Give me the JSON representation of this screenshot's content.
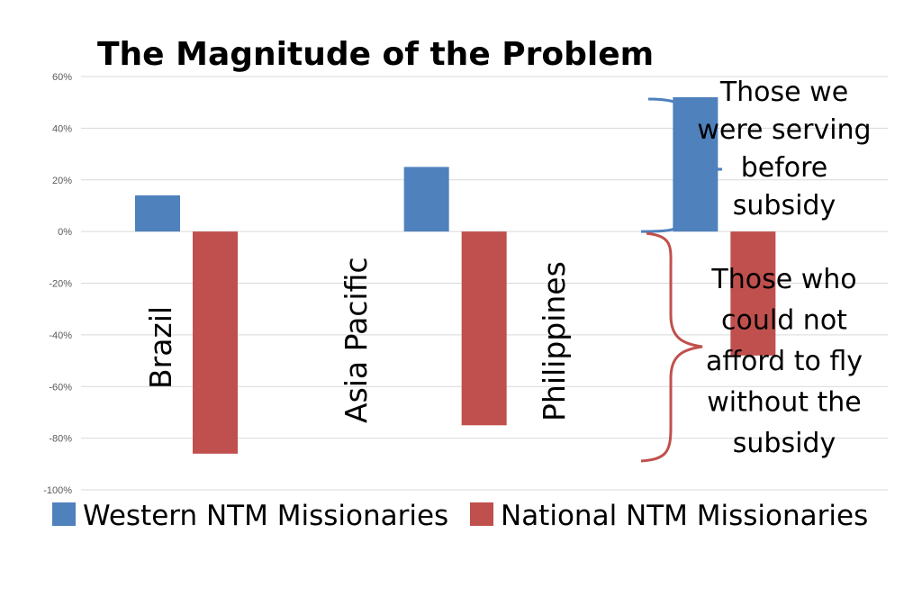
{
  "chart_data": {
    "type": "bar",
    "title": "The Magnitude of the Problem",
    "categories": [
      "Brazil",
      "Asia Pacific",
      "Philippines"
    ],
    "series": [
      {
        "name": "Western NTM Missionaries",
        "values": [
          14,
          25,
          52
        ],
        "color": "#4F81BD"
      },
      {
        "name": "National NTM Missionaries",
        "values": [
          -86,
          -75,
          -48
        ],
        "color": "#C0504D"
      }
    ],
    "ylim": [
      -100,
      60
    ],
    "yticks": [
      60,
      40,
      20,
      0,
      -20,
      -40,
      -60,
      -80,
      -100
    ],
    "ytick_labels": [
      "60%",
      "40%",
      "20%",
      "0%",
      "-20%",
      "-40%",
      "-60%",
      "-80%",
      "-100%"
    ],
    "grid": true,
    "legend": "bottom",
    "annotations": [
      {
        "lines": [
          "Those we",
          "were serving",
          "before",
          "subsidy"
        ],
        "color": "#4F81BD"
      },
      {
        "lines": [
          "Those who",
          "could not",
          "afford to fly",
          "without the",
          "subsidy"
        ],
        "color": "#C0504D"
      }
    ]
  }
}
